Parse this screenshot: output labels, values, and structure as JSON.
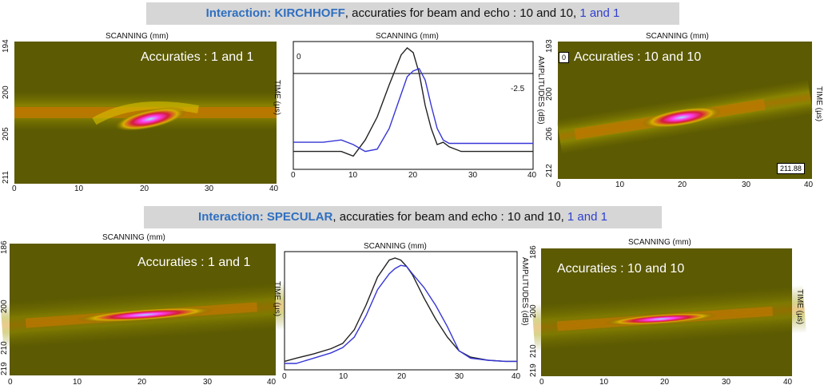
{
  "banners": [
    {
      "prefix": "Interaction: ",
      "method": "KIRCHHOFF",
      "text": ", accuraties for beam and echo : 10 and 10, ",
      "blue": "1 and 1"
    },
    {
      "prefix": "Interaction: ",
      "method": "SPECULAR",
      "text": ", accuraties for beam and echo : 10 and 10, ",
      "blue": "1 and 1"
    }
  ],
  "axis": {
    "scanning": "SCANNING (mm)",
    "time": "TIME (µs)",
    "amplitudes": "AMPLITUDES (dB)",
    "x_ticks": [
      "0",
      "10",
      "20",
      "30",
      "40"
    ]
  },
  "row1": {
    "left": {
      "accuracy": "Accuraties : 1 and 1",
      "y_ticks": [
        "194",
        "200",
        "205",
        "211"
      ]
    },
    "middle": {
      "top_value": "0",
      "ref_value": "-2.5"
    },
    "right": {
      "accuracy": "Accuraties : 10 and 10",
      "y_ticks": [
        "193",
        "200",
        "206",
        "212"
      ],
      "corner": "0",
      "readout": "211.88"
    }
  },
  "row2": {
    "left": {
      "accuracy": "Accuraties : 1 and 1",
      "y_ticks": [
        "186",
        "200",
        "210",
        "219"
      ]
    },
    "right": {
      "accuracy": "Accuraties : 10 and 10",
      "y_ticks": [
        "186",
        "200",
        "210",
        "219"
      ]
    }
  },
  "colors": {
    "background": "#5a5800",
    "blue_curve": "#3636d6",
    "black_curve": "#222222"
  },
  "chart_data": [
    {
      "type": "line",
      "title": "",
      "xlabel": "SCANNING (mm)",
      "ylabel": "AMPLITUDES (dB)",
      "xlim": [
        0,
        40
      ],
      "ylim": [
        0,
        1
      ],
      "x": [
        0,
        5,
        8,
        10,
        12,
        14,
        16,
        18,
        19,
        20,
        21,
        22,
        23,
        24,
        25,
        26,
        28,
        30,
        35,
        40
      ],
      "series": [
        {
          "color": "#222222",
          "values": [
            0.1,
            0.1,
            0.1,
            0.06,
            0.2,
            0.4,
            0.68,
            0.94,
            1.0,
            0.96,
            0.78,
            0.5,
            0.3,
            0.16,
            0.18,
            0.14,
            0.1,
            0.1,
            0.1,
            0.1
          ]
        },
        {
          "color": "#3636d6",
          "values": [
            0.18,
            0.18,
            0.2,
            0.16,
            0.1,
            0.12,
            0.3,
            0.6,
            0.75,
            0.8,
            0.82,
            0.72,
            0.5,
            0.3,
            0.2,
            0.17,
            0.17,
            0.17,
            0.17,
            0.17
          ]
        }
      ]
    },
    {
      "type": "line",
      "title": "",
      "xlabel": "SCANNING (mm)",
      "ylabel": "AMPLITUDES (dB)",
      "xlim": [
        0,
        40
      ],
      "ylim": [
        0,
        1
      ],
      "x": [
        0,
        2,
        5,
        8,
        10,
        12,
        14,
        16,
        18,
        19,
        20,
        21,
        22,
        24,
        26,
        28,
        30,
        32,
        35,
        38,
        40
      ],
      "series": [
        {
          "color": "#222222",
          "values": [
            0.02,
            0.05,
            0.09,
            0.14,
            0.19,
            0.32,
            0.55,
            0.82,
            0.98,
            1.0,
            0.98,
            0.92,
            0.84,
            0.62,
            0.42,
            0.25,
            0.12,
            0.06,
            0.03,
            0.02,
            0.02
          ]
        },
        {
          "color": "#3636d6",
          "values": [
            0.0,
            0.0,
            0.05,
            0.1,
            0.15,
            0.25,
            0.45,
            0.7,
            0.85,
            0.9,
            0.93,
            0.92,
            0.85,
            0.72,
            0.55,
            0.35,
            0.12,
            0.05,
            0.03,
            0.02,
            0.02
          ]
        }
      ]
    }
  ]
}
